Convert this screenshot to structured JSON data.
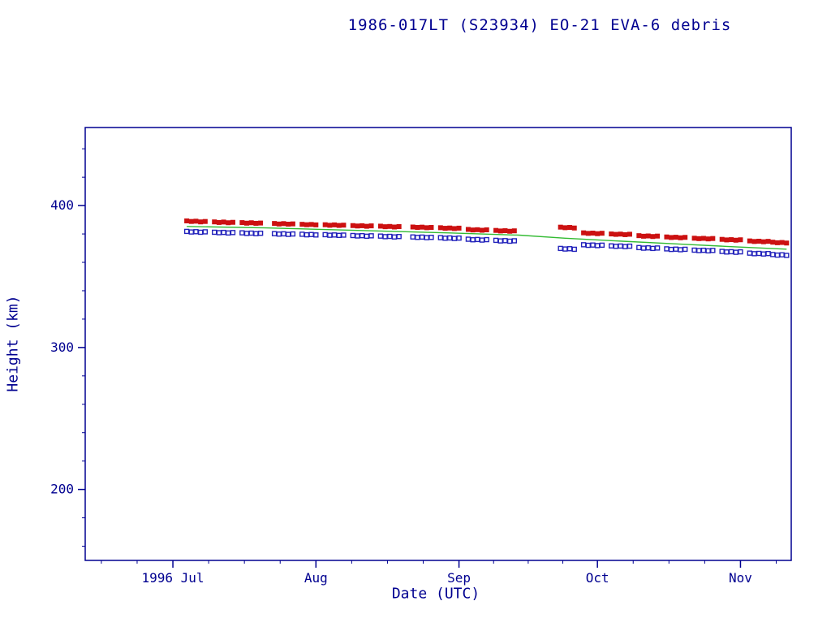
{
  "chart_data": {
    "type": "scatter",
    "title": "1986-017LT (S23934) EO-21 EVA-6 debris",
    "xlabel": "Date (UTC)",
    "ylabel": "Height (km)",
    "grid": false,
    "legend": null,
    "colors": {
      "frame": "#000090",
      "text": "#000090",
      "apogee": "#cc1111",
      "perigee": "#2222bb",
      "mean_line": "#33bb33",
      "background": "#ffffff"
    },
    "x_unit": "days since 1996 Jul 1",
    "xlim_days": [
      -19,
      134
    ],
    "ylim": [
      150,
      455
    ],
    "x_ticks": [
      {
        "day": 0,
        "label": "1996 Jul"
      },
      {
        "day": 31,
        "label": "Aug"
      },
      {
        "day": 62,
        "label": "Sep"
      },
      {
        "day": 92,
        "label": "Oct"
      },
      {
        "day": 123,
        "label": "Nov"
      }
    ],
    "y_ticks": [
      {
        "value": 200,
        "label": "200"
      },
      {
        "value": 300,
        "label": "300"
      },
      {
        "value": 400,
        "label": "400"
      }
    ],
    "y_minor_step": 20,
    "series": [
      {
        "name": "apogee height",
        "type": "points",
        "marker": "filled-square",
        "color": "#cc1111",
        "points": [
          [
            3,
            389.2
          ],
          [
            4,
            388.8
          ],
          [
            5,
            389.0
          ],
          [
            6,
            388.5
          ],
          [
            7,
            388.8
          ],
          [
            9,
            388.5
          ],
          [
            10,
            388.1
          ],
          [
            11,
            388.4
          ],
          [
            12,
            387.9
          ],
          [
            13,
            388.2
          ],
          [
            15,
            388.0
          ],
          [
            16,
            387.6
          ],
          [
            17,
            387.9
          ],
          [
            18,
            387.5
          ],
          [
            19,
            387.7
          ],
          [
            22,
            387.4
          ],
          [
            23,
            387.0
          ],
          [
            24,
            387.3
          ],
          [
            25,
            386.9
          ],
          [
            26,
            387.1
          ],
          [
            28,
            386.8
          ],
          [
            29,
            386.5
          ],
          [
            30,
            386.7
          ],
          [
            31,
            386.4
          ],
          [
            33,
            386.5
          ],
          [
            34,
            386.1
          ],
          [
            35,
            386.4
          ],
          [
            36,
            386.0
          ],
          [
            37,
            386.2
          ],
          [
            39,
            385.9
          ],
          [
            40,
            385.6
          ],
          [
            41,
            385.8
          ],
          [
            42,
            385.4
          ],
          [
            43,
            385.7
          ],
          [
            45,
            385.5
          ],
          [
            46,
            385.1
          ],
          [
            47,
            385.3
          ],
          [
            48,
            384.9
          ],
          [
            49,
            385.2
          ],
          [
            52,
            384.9
          ],
          [
            53,
            384.6
          ],
          [
            54,
            384.8
          ],
          [
            55,
            384.4
          ],
          [
            56,
            384.6
          ],
          [
            58,
            384.4
          ],
          [
            59,
            384.0
          ],
          [
            60,
            384.2
          ],
          [
            61,
            383.8
          ],
          [
            62,
            384.1
          ],
          [
            64,
            383.2
          ],
          [
            65,
            382.8
          ],
          [
            66,
            383.0
          ],
          [
            67,
            382.6
          ],
          [
            68,
            382.9
          ],
          [
            70,
            382.5
          ],
          [
            71,
            382.1
          ],
          [
            72,
            382.3
          ],
          [
            73,
            381.9
          ],
          [
            74,
            382.2
          ],
          [
            84,
            384.8
          ],
          [
            85,
            384.4
          ],
          [
            86,
            384.6
          ],
          [
            87,
            384.2
          ],
          [
            89,
            380.8
          ],
          [
            90,
            380.4
          ],
          [
            91,
            380.6
          ],
          [
            92,
            380.2
          ],
          [
            93,
            380.5
          ],
          [
            95,
            380.0
          ],
          [
            96,
            379.7
          ],
          [
            97,
            379.9
          ],
          [
            98,
            379.5
          ],
          [
            99,
            379.8
          ],
          [
            101,
            378.8
          ],
          [
            102,
            378.4
          ],
          [
            103,
            378.6
          ],
          [
            104,
            378.2
          ],
          [
            105,
            378.5
          ],
          [
            107,
            377.9
          ],
          [
            108,
            377.5
          ],
          [
            109,
            377.7
          ],
          [
            110,
            377.3
          ],
          [
            111,
            377.6
          ],
          [
            113,
            377.0
          ],
          [
            114,
            376.7
          ],
          [
            115,
            376.9
          ],
          [
            116,
            376.5
          ],
          [
            117,
            376.8
          ],
          [
            119,
            376.2
          ],
          [
            120,
            375.8
          ],
          [
            121,
            376.0
          ],
          [
            122,
            375.6
          ],
          [
            123,
            375.9
          ],
          [
            125,
            375.1
          ],
          [
            126,
            374.7
          ],
          [
            127,
            374.9
          ],
          [
            128,
            374.5
          ],
          [
            129,
            374.8
          ],
          [
            130,
            374.2
          ],
          [
            131,
            373.8
          ],
          [
            132,
            374.0
          ],
          [
            133,
            373.6
          ]
        ]
      },
      {
        "name": "perigee height",
        "type": "points",
        "marker": "open-square",
        "color": "#2222bb",
        "points": [
          [
            3,
            381.8
          ],
          [
            4,
            381.4
          ],
          [
            5,
            381.6
          ],
          [
            6,
            381.2
          ],
          [
            7,
            381.5
          ],
          [
            9,
            381.2
          ],
          [
            10,
            380.9
          ],
          [
            11,
            381.1
          ],
          [
            12,
            380.7
          ],
          [
            13,
            381.0
          ],
          [
            15,
            380.8
          ],
          [
            16,
            380.4
          ],
          [
            17,
            380.6
          ],
          [
            18,
            380.2
          ],
          [
            19,
            380.5
          ],
          [
            22,
            380.2
          ],
          [
            23,
            379.9
          ],
          [
            24,
            380.1
          ],
          [
            25,
            379.7
          ],
          [
            26,
            380.0
          ],
          [
            28,
            379.8
          ],
          [
            29,
            379.4
          ],
          [
            30,
            379.6
          ],
          [
            31,
            379.3
          ],
          [
            33,
            379.5
          ],
          [
            34,
            379.1
          ],
          [
            35,
            379.3
          ],
          [
            36,
            379.0
          ],
          [
            37,
            379.2
          ],
          [
            39,
            378.9
          ],
          [
            40,
            378.6
          ],
          [
            41,
            378.8
          ],
          [
            42,
            378.4
          ],
          [
            43,
            378.7
          ],
          [
            45,
            378.5
          ],
          [
            46,
            378.1
          ],
          [
            47,
            378.3
          ],
          [
            48,
            377.9
          ],
          [
            49,
            378.2
          ],
          [
            52,
            377.9
          ],
          [
            53,
            377.6
          ],
          [
            54,
            377.8
          ],
          [
            55,
            377.4
          ],
          [
            56,
            377.6
          ],
          [
            58,
            377.4
          ],
          [
            59,
            377.0
          ],
          [
            60,
            377.2
          ],
          [
            61,
            376.8
          ],
          [
            62,
            377.1
          ],
          [
            64,
            376.3
          ],
          [
            65,
            375.9
          ],
          [
            66,
            376.1
          ],
          [
            67,
            375.7
          ],
          [
            68,
            376.0
          ],
          [
            70,
            375.5
          ],
          [
            71,
            375.1
          ],
          [
            72,
            375.3
          ],
          [
            73,
            374.9
          ],
          [
            74,
            375.2
          ],
          [
            84,
            369.8
          ],
          [
            85,
            369.4
          ],
          [
            86,
            369.6
          ],
          [
            87,
            369.2
          ],
          [
            89,
            372.4
          ],
          [
            90,
            372.0
          ],
          [
            91,
            372.2
          ],
          [
            92,
            371.8
          ],
          [
            93,
            372.1
          ],
          [
            95,
            371.6
          ],
          [
            96,
            371.3
          ],
          [
            97,
            371.5
          ],
          [
            98,
            371.1
          ],
          [
            99,
            371.4
          ],
          [
            101,
            370.4
          ],
          [
            102,
            370.0
          ],
          [
            103,
            370.2
          ],
          [
            104,
            369.8
          ],
          [
            105,
            370.1
          ],
          [
            107,
            369.5
          ],
          [
            108,
            369.1
          ],
          [
            109,
            369.3
          ],
          [
            110,
            368.9
          ],
          [
            111,
            369.2
          ],
          [
            113,
            368.6
          ],
          [
            114,
            368.3
          ],
          [
            115,
            368.5
          ],
          [
            116,
            368.1
          ],
          [
            117,
            368.4
          ],
          [
            119,
            367.7
          ],
          [
            120,
            367.3
          ],
          [
            121,
            367.5
          ],
          [
            122,
            367.1
          ],
          [
            123,
            367.4
          ],
          [
            125,
            366.5
          ],
          [
            126,
            366.1
          ],
          [
            127,
            366.3
          ],
          [
            128,
            365.9
          ],
          [
            129,
            366.2
          ],
          [
            130,
            365.5
          ],
          [
            131,
            365.1
          ],
          [
            132,
            365.3
          ],
          [
            133,
            364.9
          ]
        ]
      },
      {
        "name": "mean height",
        "type": "line",
        "marker": "none",
        "color": "#33bb33",
        "points": [
          [
            3,
            385.3
          ],
          [
            20,
            384.3
          ],
          [
            40,
            382.5
          ],
          [
            60,
            380.7
          ],
          [
            75,
            379.2
          ],
          [
            85,
            377.0
          ],
          [
            95,
            375.3
          ],
          [
            110,
            372.8
          ],
          [
            120,
            371.2
          ],
          [
            133,
            369.3
          ]
        ]
      }
    ]
  }
}
